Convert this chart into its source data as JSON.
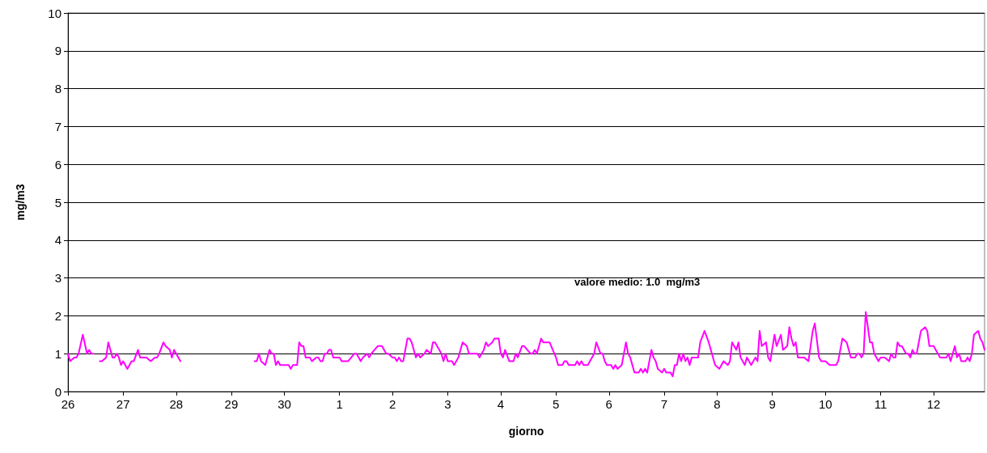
{
  "chart_data": {
    "type": "line",
    "xlabel": "giorno",
    "ylabel": "mg/m3",
    "annotations": [
      "valore medio: 1.0  mg/m3"
    ],
    "categories": [
      "26",
      null,
      null,
      null,
      null,
      null,
      null,
      null,
      null,
      null,
      null,
      null,
      null,
      null,
      null,
      null,
      null,
      null,
      null,
      null,
      null,
      null,
      null,
      null,
      null,
      null,
      "27",
      null,
      null,
      null,
      null,
      null,
      null,
      null,
      null,
      null,
      null,
      null,
      null,
      null,
      null,
      null,
      null,
      null,
      null,
      null,
      null,
      null,
      null,
      null,
      null,
      "28",
      null,
      null,
      null,
      null,
      null,
      null,
      null,
      null,
      null,
      null,
      null,
      null,
      null,
      null,
      null,
      null,
      null,
      null,
      null,
      null,
      null,
      null,
      null,
      null,
      null,
      "29",
      null,
      null,
      null,
      null,
      null,
      null,
      null,
      null,
      null,
      null,
      null,
      null,
      null,
      null,
      null,
      null,
      null,
      null,
      null,
      null,
      null,
      null,
      null,
      null,
      "30",
      null,
      null,
      null,
      null,
      null,
      null,
      null,
      null,
      null,
      null,
      null,
      null,
      null,
      null,
      null,
      null,
      null,
      null,
      null,
      null,
      null,
      null,
      null,
      null,
      null,
      "1",
      null,
      null,
      null,
      null,
      null,
      null,
      null,
      null,
      null,
      null,
      null,
      null,
      null,
      null,
      null,
      null,
      null,
      null,
      null,
      null,
      null,
      null,
      null,
      null,
      "2",
      null,
      null,
      null,
      null,
      null,
      null,
      null,
      null,
      null,
      null,
      null,
      null,
      null,
      null,
      null,
      null,
      null,
      null,
      null,
      null,
      null,
      null,
      null,
      null,
      null,
      "3",
      null,
      null,
      null,
      null,
      null,
      null,
      null,
      null,
      null,
      null,
      null,
      null,
      null,
      null,
      null,
      null,
      null,
      null,
      null,
      null,
      null,
      null,
      null,
      null,
      "4",
      null,
      null,
      null,
      null,
      null,
      null,
      null,
      null,
      null,
      null,
      null,
      null,
      null,
      null,
      null,
      null,
      null,
      null,
      null,
      null,
      null,
      null,
      null,
      null,
      null,
      "5",
      null,
      null,
      null,
      null,
      null,
      null,
      null,
      null,
      null,
      null,
      null,
      null,
      null,
      null,
      null,
      null,
      null,
      null,
      null,
      null,
      null,
      null,
      null,
      null,
      "6",
      null,
      null,
      null,
      null,
      null,
      null,
      null,
      null,
      null,
      null,
      null,
      null,
      null,
      null,
      null,
      null,
      null,
      null,
      null,
      null,
      null,
      null,
      null,
      null,
      null,
      "7",
      null,
      null,
      null,
      null,
      null,
      null,
      null,
      null,
      null,
      null,
      null,
      null,
      null,
      null,
      null,
      null,
      null,
      null,
      null,
      null,
      null,
      null,
      null,
      null,
      "8",
      null,
      null,
      null,
      null,
      null,
      null,
      null,
      null,
      null,
      null,
      null,
      null,
      null,
      null,
      null,
      null,
      null,
      null,
      null,
      null,
      null,
      null,
      null,
      null,
      null,
      "9",
      null,
      null,
      null,
      null,
      null,
      null,
      null,
      null,
      null,
      null,
      null,
      null,
      null,
      null,
      null,
      null,
      null,
      null,
      null,
      null,
      null,
      null,
      null,
      null,
      "10",
      null,
      null,
      null,
      null,
      null,
      null,
      null,
      null,
      null,
      null,
      null,
      null,
      null,
      null,
      null,
      null,
      null,
      null,
      null,
      null,
      null,
      null,
      null,
      null,
      null,
      "11",
      null,
      null,
      null,
      null,
      null,
      null,
      null,
      null,
      null,
      null,
      null,
      null,
      null,
      null,
      null,
      null,
      null,
      null,
      null,
      null,
      null,
      null,
      null,
      null,
      "12",
      null,
      null,
      null,
      null,
      null,
      null,
      null,
      null,
      null,
      null,
      null,
      null,
      null,
      null,
      null,
      null,
      null,
      null,
      null,
      null,
      null,
      null,
      null,
      null
    ],
    "ylim": [
      0,
      10
    ],
    "yticks": [
      0,
      1,
      2,
      3,
      4,
      5,
      6,
      7,
      8,
      9,
      10
    ],
    "grid": "y",
    "series": [
      {
        "color": "#ff00ff",
        "values": [
          1.0,
          0.8,
          null,
          0.9,
          0.9,
          1.0,
          null,
          1.5,
          null,
          1.0,
          1.1,
          1.0,
          1.0,
          null,
          null,
          null,
          null,
          null,
          null,
          null,
          null,
          null,
          null,
          null,
          null,
          null,
          null,
          null,
          null,
          null,
          null,
          null,
          null,
          null,
          null,
          null,
          null,
          null,
          null,
          null,
          null,
          null,
          null,
          null,
          null,
          null,
          null,
          null,
          null,
          null,
          null,
          null,
          null,
          null,
          null,
          null,
          null,
          null,
          null,
          null,
          null,
          null,
          null,
          null,
          null,
          null,
          null,
          null,
          null,
          null,
          null,
          null,
          null,
          null,
          null,
          null,
          null,
          null,
          null,
          null,
          null,
          null,
          null,
          null,
          null,
          null,
          null,
          null,
          null,
          null,
          null,
          null,
          null,
          null,
          null,
          null,
          null,
          null,
          null,
          null,
          null,
          null,
          null,
          null,
          null,
          null,
          null,
          null,
          null,
          null,
          null,
          null,
          null,
          null,
          null,
          null,
          null,
          null,
          null,
          null,
          null,
          null,
          null,
          null,
          null,
          null,
          null,
          null,
          null,
          null,
          null,
          null,
          null,
          null,
          null,
          null,
          null,
          null,
          null,
          null,
          null,
          null,
          null,
          null,
          null,
          null,
          null,
          null,
          null,
          null,
          null,
          null,
          null,
          null,
          null,
          null,
          null,
          null,
          null,
          null,
          null,
          null,
          null,
          null,
          null,
          null,
          null,
          null,
          null,
          null,
          null,
          null,
          null,
          null,
          null,
          null,
          null,
          null,
          null,
          null,
          null,
          null,
          null,
          null,
          null,
          null,
          null,
          null,
          null,
          null,
          null,
          null,
          null,
          null,
          null,
          null,
          null,
          null,
          null,
          null,
          null,
          null,
          null,
          null,
          null,
          null,
          null,
          null,
          null,
          null,
          null,
          null,
          null,
          null,
          null,
          null,
          null,
          null,
          null,
          null,
          null,
          null,
          null,
          null,
          null,
          null,
          null,
          null,
          null,
          null,
          null,
          null,
          null,
          null,
          null,
          null,
          null,
          null,
          null,
          null,
          null,
          null,
          null,
          null,
          null,
          null,
          null,
          null,
          null,
          null,
          null,
          null,
          null,
          null,
          null,
          null,
          null,
          null,
          null,
          null,
          null,
          null,
          null,
          null,
          null,
          null,
          null,
          null,
          null,
          null,
          null,
          null,
          null,
          null,
          null,
          null,
          null,
          null,
          null,
          null,
          null,
          null,
          null,
          null,
          null,
          null,
          null,
          null,
          null,
          null,
          null,
          null,
          null,
          null,
          null,
          null,
          null,
          null,
          null,
          null,
          null,
          null,
          null,
          null,
          null,
          null,
          null,
          null,
          null,
          null,
          null,
          null,
          null,
          null,
          null,
          null,
          null,
          null,
          null,
          null,
          null,
          null,
          null,
          null,
          null,
          null,
          null,
          null,
          null,
          null,
          null,
          null,
          null,
          null,
          null,
          null,
          null,
          null,
          null,
          null,
          null,
          null,
          null,
          null,
          null,
          null,
          null,
          null,
          null,
          null,
          null,
          null,
          null,
          null,
          null,
          null,
          null,
          null,
          null,
          null,
          null,
          null,
          null,
          null,
          null,
          null,
          null,
          null,
          null,
          null,
          null,
          null,
          null,
          null,
          null,
          null,
          null,
          null,
          null,
          null,
          null,
          null,
          null,
          null,
          null,
          null,
          null,
          null,
          null,
          null,
          null,
          null,
          null,
          null,
          null,
          null,
          null,
          null,
          null,
          null,
          null,
          null,
          null,
          null,
          null,
          null,
          null,
          null,
          null,
          null,
          null,
          null,
          null,
          null,
          null,
          null,
          null,
          null,
          null,
          null,
          null,
          null,
          null,
          null,
          null,
          null,
          null,
          null,
          null,
          null,
          null,
          null,
          null
        ]
      },
      {
        "color": "#ff00ff",
        "values": [
          null,
          null,
          null,
          null,
          null,
          null,
          null,
          null,
          null,
          null,
          null,
          null,
          null,
          null,
          null,
          0.8,
          0.8,
          null,
          0.9,
          1.3,
          null,
          0.9,
          0.9,
          1.0,
          0.9,
          0.7,
          0.8,
          null,
          0.6,
          0.7,
          0.8,
          0.8,
          null,
          1.1,
          0.9,
          null,
          0.9,
          0.9,
          null,
          0.8,
          null,
          0.9,
          0.9,
          1.0,
          null,
          1.3,
          1.2,
          null,
          1.1,
          0.9,
          1.1,
          null,
          null,
          0.8,
          null,
          null,
          null,
          null,
          null,
          null,
          null,
          null,
          null,
          null,
          null,
          null,
          null,
          null,
          null,
          null,
          null,
          null,
          null,
          null,
          null,
          null,
          null,
          null,
          null,
          null,
          null,
          null,
          null,
          null,
          null,
          null,
          null,
          null,
          null,
          null,
          null,
          null,
          null,
          null,
          null,
          null,
          null,
          null,
          null,
          null,
          null,
          null,
          null,
          null,
          null,
          null,
          null,
          null,
          null,
          null,
          null,
          null,
          null,
          null,
          null,
          null,
          null,
          null,
          null,
          null,
          null,
          null,
          null,
          null,
          null,
          null,
          null,
          null,
          null,
          null,
          null,
          null,
          null,
          null,
          null,
          null,
          null,
          null,
          null,
          null,
          null,
          null,
          null,
          null,
          null,
          null,
          null,
          null,
          null,
          null,
          null,
          null,
          null,
          null,
          null,
          null,
          null,
          null,
          null,
          null,
          null,
          null,
          null,
          null,
          null,
          null,
          null,
          null,
          null,
          null,
          null,
          null,
          null,
          null,
          null,
          null,
          null,
          null,
          null,
          null,
          null,
          null,
          null,
          null,
          null,
          null,
          null,
          null,
          null,
          null,
          null,
          null,
          null,
          null,
          null,
          null,
          null,
          null,
          null,
          null,
          null,
          null,
          null,
          null,
          null,
          null,
          null,
          null,
          null,
          null,
          null,
          null,
          null,
          null,
          null,
          null,
          null,
          null,
          null,
          null,
          null,
          null,
          null,
          null,
          null,
          null,
          null,
          null,
          null,
          null,
          null,
          null,
          null,
          null,
          null,
          null,
          null,
          null,
          null,
          null,
          null,
          null,
          null,
          null,
          null,
          null,
          null,
          null,
          null,
          null,
          null,
          null,
          null,
          null,
          null,
          null,
          null,
          null,
          null,
          null,
          null,
          null,
          null,
          null,
          null,
          null,
          null,
          null,
          null,
          null,
          null,
          null,
          null,
          null,
          null,
          null,
          null,
          null,
          null,
          null,
          null,
          null,
          null,
          null,
          null,
          null,
          null,
          null,
          null,
          null,
          null,
          null,
          null,
          null,
          null,
          null,
          null,
          null,
          null,
          null,
          null,
          null,
          null,
          null,
          null,
          null,
          null,
          null,
          null,
          null,
          null,
          null,
          null,
          null,
          null,
          null,
          null,
          null,
          null,
          null,
          null,
          null,
          null,
          null,
          null,
          null,
          null,
          null,
          null,
          null,
          null,
          null,
          null,
          null,
          null,
          null,
          null,
          null,
          null,
          null,
          null,
          null,
          null,
          null,
          null,
          null,
          null,
          null,
          null,
          null,
          null,
          null,
          null,
          null,
          null,
          null,
          null,
          null,
          null,
          null,
          null,
          null,
          null,
          null,
          null,
          null,
          null,
          null,
          null,
          null,
          null,
          null,
          null,
          null,
          null,
          null,
          null,
          null,
          null,
          null,
          null,
          null,
          null,
          null,
          null,
          null,
          null,
          null,
          null,
          null,
          null,
          null,
          null,
          null,
          null,
          null,
          null,
          null,
          null,
          null,
          null,
          null,
          null,
          null,
          null,
          null,
          null,
          null,
          null,
          null,
          null,
          null,
          null,
          null,
          null,
          null,
          null,
          null,
          null,
          null,
          null,
          null,
          null,
          null,
          null,
          null,
          null,
          null,
          null,
          null,
          null,
          null,
          null
        ]
      },
      {
        "color": "#ff00ff",
        "values": [
          null,
          null,
          null,
          null,
          null,
          null,
          null,
          null,
          null,
          null,
          null,
          null,
          null,
          null,
          null,
          null,
          null,
          null,
          null,
          null,
          null,
          null,
          null,
          null,
          null,
          null,
          null,
          null,
          null,
          null,
          null,
          null,
          null,
          null,
          null,
          null,
          null,
          null,
          null,
          null,
          null,
          null,
          null,
          null,
          null,
          null,
          null,
          null,
          null,
          null,
          null,
          null,
          null,
          null,
          null,
          null,
          null,
          null,
          null,
          null,
          null,
          null,
          null,
          null,
          null,
          null,
          null,
          null,
          null,
          null,
          null,
          null,
          null,
          null,
          null,
          null,
          null,
          null,
          null,
          null,
          null,
          null,
          null,
          null,
          null,
          null,
          null,
          null,
          0.8,
          0.8,
          1.0,
          0.8,
          null,
          0.7,
          null,
          1.1,
          1.0,
          1.0,
          0.7,
          0.8,
          0.7,
          null,
          null,
          null,
          0.7,
          0.6,
          0.7,
          null,
          0.7,
          1.3,
          1.2,
          1.2,
          0.9,
          null,
          0.9,
          0.8,
          null,
          0.9,
          0.9,
          0.8,
          0.8,
          1.0,
          1.0,
          1.1,
          1.1,
          0.9,
          null,
          null,
          0.9,
          0.8,
          null,
          null,
          0.8,
          null,
          null,
          1.0,
          1.0,
          null,
          0.8,
          0.9,
          null,
          1.0,
          0.9,
          1.0,
          null,
          null,
          1.2,
          null,
          1.2,
          null,
          1.0,
          1.0,
          null,
          0.9,
          0.9,
          0.8,
          0.9,
          0.8,
          0.8,
          null,
          1.4,
          1.4,
          1.3,
          null,
          0.9,
          1.0,
          0.9,
          null,
          1.0,
          1.1,
          null,
          1.0,
          1.3,
          1.3,
          null,
          1.1,
          1.0,
          0.8,
          1.0,
          0.8,
          null,
          0.8,
          0.7,
          null,
          0.9,
          null,
          1.3,
          null,
          1.2,
          1.0,
          null,
          null,
          null,
          1.0,
          0.9,
          null,
          1.1,
          1.3,
          1.2,
          null,
          1.3,
          1.4,
          null,
          1.4,
          1.0,
          0.9,
          1.1,
          null,
          0.8,
          0.8,
          0.8,
          1.0,
          0.9,
          null,
          1.2,
          1.2,
          null,
          null,
          1.0,
          1.0,
          1.1,
          1.0,
          null,
          1.4,
          1.3,
          null,
          1.3,
          1.3,
          null,
          null,
          0.9,
          0.7,
          null,
          0.7,
          0.8,
          0.8,
          0.7,
          null,
          null,
          0.7,
          0.8,
          0.7,
          0.8,
          0.7,
          null,
          0.7,
          null,
          null,
          1.0,
          1.3,
          null,
          1.0,
          1.0,
          0.8,
          0.7,
          null,
          0.7,
          0.6,
          0.7,
          0.6,
          null,
          0.7,
          null,
          1.3,
          1.0,
          0.9,
          null,
          0.5,
          null,
          0.5,
          0.6,
          0.5,
          0.6,
          0.5,
          null,
          1.1,
          0.9,
          0.8,
          0.6,
          null,
          0.5,
          0.6,
          0.5,
          null,
          0.5,
          0.4,
          0.7,
          0.7,
          1.0,
          0.8,
          1.0,
          0.8,
          0.9,
          0.7,
          0.9,
          null,
          null,
          0.9,
          1.3,
          null,
          1.6,
          null,
          1.3,
          null,
          null,
          0.7,
          null,
          0.6,
          null,
          0.8,
          null,
          0.7,
          0.8,
          1.3,
          null,
          1.1,
          1.3,
          0.9,
          null,
          0.7,
          0.9,
          null,
          0.7,
          null,
          0.9,
          0.8,
          1.6,
          1.2,
          null,
          1.3,
          0.9,
          0.8,
          null,
          1.5,
          1.2,
          null,
          1.5,
          1.1,
          null,
          1.2,
          1.7,
          1.4,
          1.2,
          1.3,
          0.9,
          null,
          null,
          0.9,
          null,
          0.8,
          null,
          1.6,
          1.8,
          null,
          0.9,
          0.8,
          null,
          0.8,
          null,
          0.7,
          null,
          null,
          0.7,
          0.8,
          null,
          1.4,
          null,
          1.3,
          null,
          0.9,
          null,
          0.9,
          1.0,
          1.0,
          0.9,
          1.0,
          2.1,
          null,
          1.3,
          1.3,
          1.0,
          null,
          0.8,
          0.9,
          null,
          0.9,
          null,
          0.8,
          1.0,
          0.9,
          0.9,
          1.3,
          1.2,
          1.2,
          null,
          1.0,
          1.0,
          0.9,
          1.1,
          1.0,
          1.0,
          null,
          1.6,
          null,
          1.7,
          1.6,
          1.2,
          null,
          1.2,
          1.1,
          1.0,
          0.9,
          null,
          null,
          0.9,
          1.0,
          0.8,
          null,
          1.2,
          0.9,
          1.0,
          0.8,
          null,
          0.8,
          0.9,
          0.8,
          1.0,
          1.5,
          null,
          1.6,
          1.4,
          1.3,
          1.1
        ]
      }
    ]
  }
}
